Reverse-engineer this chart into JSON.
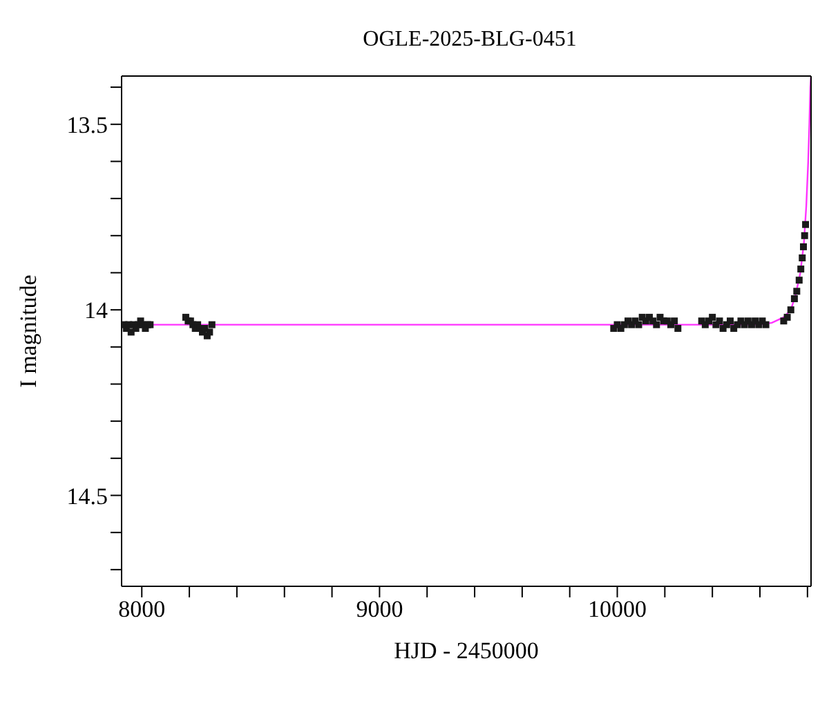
{
  "chart_data": {
    "type": "scatter",
    "title": "OGLE-2025-BLG-0451",
    "xlabel": "HJD - 2450000",
    "ylabel": "I magnitude",
    "xlim": [
      7915,
      10815
    ],
    "ylim": [
      14.745,
      13.37
    ],
    "xticks": [
      {
        "value": 8000,
        "label": "8000"
      },
      {
        "value": 8200,
        "label": null
      },
      {
        "value": 8400,
        "label": null
      },
      {
        "value": 8600,
        "label": null
      },
      {
        "value": 8800,
        "label": null
      },
      {
        "value": 9000,
        "label": "9000"
      },
      {
        "value": 9200,
        "label": null
      },
      {
        "value": 9400,
        "label": null
      },
      {
        "value": 9600,
        "label": null
      },
      {
        "value": 9800,
        "label": null
      },
      {
        "value": 10000,
        "label": "10000"
      },
      {
        "value": 10200,
        "label": null
      },
      {
        "value": 10400,
        "label": null
      },
      {
        "value": 10600,
        "label": null
      },
      {
        "value": 10800,
        "label": null
      }
    ],
    "yticks": [
      {
        "value": 13.4,
        "label": null
      },
      {
        "value": 13.5,
        "label": "13.5"
      },
      {
        "value": 13.6,
        "label": null
      },
      {
        "value": 13.7,
        "label": null
      },
      {
        "value": 13.8,
        "label": null
      },
      {
        "value": 13.9,
        "label": null
      },
      {
        "value": 14,
        "label": "14"
      },
      {
        "value": 14.1,
        "label": null
      },
      {
        "value": 14.2,
        "label": null
      },
      {
        "value": 14.3,
        "label": null
      },
      {
        "value": 14.4,
        "label": null
      },
      {
        "value": 14.5,
        "label": "14.5"
      },
      {
        "value": 14.6,
        "label": null
      },
      {
        "value": 14.7,
        "label": null
      }
    ],
    "grid": false,
    "legend": false,
    "marker": "square",
    "series": [
      {
        "color": "#1a1a1a",
        "x": [
          7925,
          7935,
          7945,
          7955,
          7965,
          7975,
          7985,
          7995,
          8005,
          8015,
          8025,
          8035,
          8185,
          8195,
          8205,
          8215,
          8225,
          8235,
          8245,
          8255,
          8265,
          8275,
          8285,
          8295,
          9985,
          10000,
          10015,
          10030,
          10045,
          10060,
          10075,
          10090,
          10105,
          10120,
          10135,
          10150,
          10165,
          10180,
          10195,
          10210,
          10225,
          10240,
          10255,
          10355,
          10370,
          10385,
          10400,
          10415,
          10430,
          10445,
          10460,
          10475,
          10490,
          10505,
          10520,
          10535,
          10550,
          10565,
          10580,
          10595,
          10610,
          10625,
          10700,
          10715,
          10730,
          10745,
          10755,
          10765,
          10772,
          10778,
          10783,
          10788,
          10792
        ],
        "values": [
          14.04,
          14.05,
          14.04,
          14.06,
          14.04,
          14.05,
          14.04,
          14.03,
          14.04,
          14.05,
          14.04,
          14.04,
          14.02,
          14.03,
          14.03,
          14.04,
          14.05,
          14.04,
          14.05,
          14.06,
          14.05,
          14.07,
          14.06,
          14.04,
          14.05,
          14.04,
          14.05,
          14.04,
          14.03,
          14.04,
          14.03,
          14.04,
          14.02,
          14.03,
          14.02,
          14.03,
          14.04,
          14.02,
          14.03,
          14.03,
          14.04,
          14.03,
          14.05,
          14.03,
          14.04,
          14.03,
          14.02,
          14.04,
          14.03,
          14.05,
          14.04,
          14.03,
          14.05,
          14.04,
          14.03,
          14.04,
          14.03,
          14.04,
          14.03,
          14.04,
          14.03,
          14.04,
          14.03,
          14.02,
          14.0,
          13.97,
          13.95,
          13.92,
          13.89,
          13.86,
          13.83,
          13.8,
          13.77
        ]
      },
      {
        "type": "line",
        "color": "#ff33ff",
        "marker": "none",
        "x": [
          7915,
          8500,
          9000,
          9500,
          10000,
          10400,
          10600,
          10650,
          10700,
          10730,
          10750,
          10770,
          10785,
          10795,
          10803,
          10808,
          10812,
          10815
        ],
        "values": [
          14.04,
          14.04,
          14.04,
          14.04,
          14.04,
          14.04,
          14.04,
          14.035,
          14.02,
          14.0,
          13.96,
          13.9,
          13.82,
          13.72,
          13.6,
          13.5,
          13.4,
          13.37
        ]
      }
    ]
  }
}
